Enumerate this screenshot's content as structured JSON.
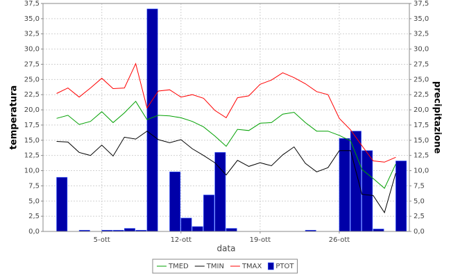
{
  "chart_data": {
    "type": "combo",
    "x_label": "data",
    "y_label": "temperatura",
    "y2_label": "precipitazione",
    "x": [
      1,
      2,
      3,
      4,
      5,
      6,
      7,
      8,
      9,
      10,
      11,
      12,
      13,
      14,
      15,
      16,
      17,
      18,
      19,
      20,
      21,
      22,
      23,
      24,
      25,
      26,
      27,
      28,
      29,
      30,
      31
    ],
    "xlim": [
      -0.2,
      32.2
    ],
    "xticks": [
      {
        "value": 5,
        "label": "5-ott"
      },
      {
        "value": 12,
        "label": "12-ott"
      },
      {
        "value": 19,
        "label": "19-ott"
      },
      {
        "value": 26,
        "label": "26-ott"
      }
    ],
    "ylim": [
      0,
      37.5
    ],
    "y2lim": [
      0,
      37.5
    ],
    "yticks": [
      {
        "value": 0,
        "label": "0,0"
      },
      {
        "value": 2.5,
        "label": "2,5"
      },
      {
        "value": 5,
        "label": "5,0"
      },
      {
        "value": 7.5,
        "label": "7,5"
      },
      {
        "value": 10,
        "label": "10,0"
      },
      {
        "value": 12.5,
        "label": "12,5"
      },
      {
        "value": 15,
        "label": "15,0"
      },
      {
        "value": 17.5,
        "label": "17,5"
      },
      {
        "value": 20,
        "label": "20,0"
      },
      {
        "value": 22.5,
        "label": "22,5"
      },
      {
        "value": 25,
        "label": "25,0"
      },
      {
        "value": 27.5,
        "label": "27,5"
      },
      {
        "value": 30,
        "label": "30,0"
      },
      {
        "value": 32.5,
        "label": "32,5"
      },
      {
        "value": 35,
        "label": "35,0"
      },
      {
        "value": 37.5,
        "label": "37,5"
      }
    ],
    "y2ticks": [
      {
        "value": 0,
        "label": "0,0"
      },
      {
        "value": 2.5,
        "label": "2,5"
      },
      {
        "value": 5,
        "label": "5,0"
      },
      {
        "value": 7.5,
        "label": "7,5"
      },
      {
        "value": 10,
        "label": "10,0"
      },
      {
        "value": 12.5,
        "label": "12,5"
      },
      {
        "value": 15,
        "label": "15,0"
      },
      {
        "value": 17.5,
        "label": "17,5"
      },
      {
        "value": 20,
        "label": "20,0"
      },
      {
        "value": 22.5,
        "label": "22,5"
      },
      {
        "value": 25,
        "label": "25,0"
      },
      {
        "value": 27.5,
        "label": "27,5"
      },
      {
        "value": 30,
        "label": "30,0"
      },
      {
        "value": 32.5,
        "label": "32,5"
      },
      {
        "value": 35,
        "label": "35,0"
      },
      {
        "value": 37.5,
        "label": "37,5"
      }
    ],
    "grid": true,
    "legend": "bottom",
    "series": [
      {
        "name": "TMED",
        "type": "line",
        "color": "#00a000",
        "values": [
          18.6,
          19.1,
          17.6,
          18.1,
          19.7,
          17.9,
          19.5,
          21.4,
          18.4,
          19.1,
          19.0,
          18.7,
          18.1,
          17.2,
          15.7,
          14.0,
          16.8,
          16.6,
          17.8,
          17.9,
          19.3,
          19.6,
          17.9,
          16.5,
          16.5,
          15.8,
          14.9,
          10.2,
          8.7,
          7.1,
          11.1
        ]
      },
      {
        "name": "TMIN",
        "type": "line",
        "color": "#000000",
        "values": [
          14.8,
          14.7,
          13.0,
          12.5,
          14.2,
          12.4,
          15.5,
          15.2,
          16.5,
          15.1,
          14.6,
          15.1,
          13.6,
          12.5,
          11.3,
          9.3,
          11.7,
          10.7,
          11.3,
          10.8,
          12.6,
          13.9,
          11.2,
          9.8,
          10.5,
          13.3,
          13.3,
          6.1,
          5.9,
          3.1,
          9.6
        ]
      },
      {
        "name": "TMAX",
        "type": "line",
        "color": "#ff0000",
        "values": [
          22.7,
          23.6,
          22.1,
          23.6,
          25.2,
          23.5,
          23.6,
          27.6,
          20.3,
          23.1,
          23.3,
          22.1,
          22.5,
          21.9,
          19.9,
          18.7,
          22.0,
          22.3,
          24.2,
          24.9,
          26.1,
          25.3,
          24.3,
          23.0,
          22.5,
          18.6,
          16.7,
          14.1,
          11.6,
          11.4,
          12.2
        ]
      },
      {
        "name": "PTOT",
        "type": "bar",
        "axis": "y2",
        "color": "#0000a8",
        "values": [
          8.9,
          0,
          0.2,
          0,
          0.2,
          0.2,
          0.5,
          0.2,
          36.6,
          0,
          9.8,
          2.2,
          0.8,
          6.0,
          13.0,
          0.5,
          0,
          0,
          0,
          0,
          0,
          0,
          0.2,
          0,
          0,
          15.3,
          16.5,
          13.3,
          0.4,
          0,
          11.6
        ]
      }
    ]
  }
}
